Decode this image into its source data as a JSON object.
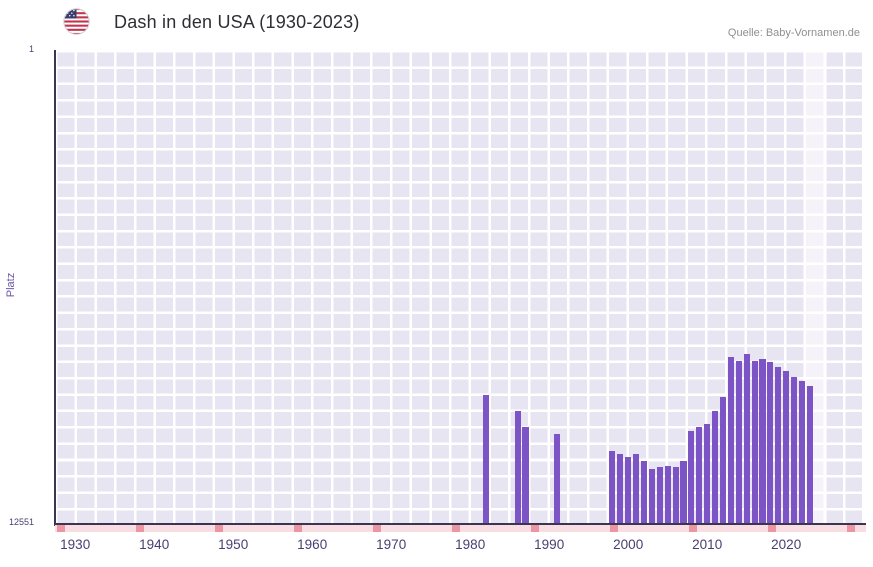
{
  "header": {
    "title": "Dash in den USA (1930-2023)",
    "source": "Quelle: Baby-Vornamen.de"
  },
  "axes": {
    "y_label": "Platz",
    "y_top_tick": "1",
    "y_bottom_tick": "12551",
    "x_ticks": [
      "1930",
      "1940",
      "1950",
      "1960",
      "1970",
      "1980",
      "1990",
      "2000",
      "2010",
      "2020"
    ]
  },
  "colors": {
    "bar": "#7c54c6",
    "plot_background": "#e8e5f2",
    "grid": "#ffffff",
    "axis": "#3a3550",
    "strip": "#f8dde3",
    "strip_mark": "#ec96a4",
    "tick_label": "#4a3e70",
    "title": "#2e2e33",
    "source": "#8f8f94"
  },
  "chart_data": {
    "type": "bar",
    "title": "Dash in den USA (1930-2023)",
    "xlabel": "",
    "ylabel": "Platz",
    "ylim": [
      1,
      12551
    ],
    "y_axis_inverted": true,
    "xlim": [
      1930,
      2023
    ],
    "grid": true,
    "legend": "none",
    "series": [
      {
        "name": "Dash",
        "points": [
          {
            "year": 1982,
            "rank": 9136
          },
          {
            "year": 1986,
            "rank": 9559
          },
          {
            "year": 1987,
            "rank": 9983
          },
          {
            "year": 1991,
            "rank": 10168
          },
          {
            "year": 1998,
            "rank": 10618
          },
          {
            "year": 1999,
            "rank": 10698
          },
          {
            "year": 2000,
            "rank": 10777
          },
          {
            "year": 2001,
            "rank": 10698
          },
          {
            "year": 2002,
            "rank": 10883
          },
          {
            "year": 2003,
            "rank": 11095
          },
          {
            "year": 2004,
            "rank": 11042
          },
          {
            "year": 2005,
            "rank": 11016
          },
          {
            "year": 2006,
            "rank": 11042
          },
          {
            "year": 2007,
            "rank": 10883
          },
          {
            "year": 2008,
            "rank": 10089
          },
          {
            "year": 2009,
            "rank": 9983
          },
          {
            "year": 2010,
            "rank": 9904
          },
          {
            "year": 2011,
            "rank": 9559
          },
          {
            "year": 2012,
            "rank": 9189
          },
          {
            "year": 2013,
            "rank": 8130
          },
          {
            "year": 2014,
            "rank": 8236
          },
          {
            "year": 2015,
            "rank": 8050
          },
          {
            "year": 2016,
            "rank": 8236
          },
          {
            "year": 2017,
            "rank": 8183
          },
          {
            "year": 2018,
            "rank": 8262
          },
          {
            "year": 2019,
            "rank": 8395
          },
          {
            "year": 2020,
            "rank": 8501
          },
          {
            "year": 2021,
            "rank": 8659
          },
          {
            "year": 2022,
            "rank": 8765
          },
          {
            "year": 2023,
            "rank": 8898
          }
        ]
      }
    ]
  }
}
